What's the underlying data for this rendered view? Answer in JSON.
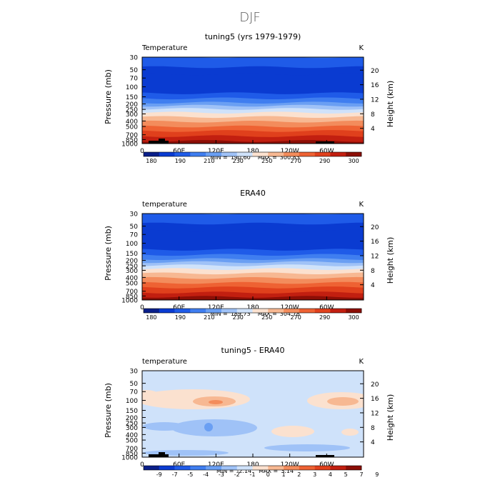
{
  "figure": {
    "title": "DJF"
  },
  "chart_data": [
    {
      "type": "heatmap",
      "title": "tuning5 (yrs 1979-1979)",
      "variable_label": "Temperature",
      "units": "K",
      "ylabel": "Pressure (mb)",
      "ylabel_right": "Height (km)",
      "x_ticks": [
        "0",
        "60E",
        "120E",
        "180",
        "120W",
        "60W"
      ],
      "y_ticks": [
        "30",
        "50",
        "70",
        "100",
        "150",
        "200",
        "250",
        "300",
        "400",
        "500",
        "700",
        "850",
        "1000"
      ],
      "y_ticks_right": [
        "20",
        "16",
        "12",
        "8",
        "4"
      ],
      "ylim": [
        1000,
        30
      ],
      "stats": {
        "min_label": "MIN =",
        "min": "190.60",
        "max_label": "MAX =",
        "max": "300.83"
      },
      "colorbar_labels": [
        "180",
        "190",
        "210",
        "230",
        "250",
        "270",
        "290",
        "300"
      ],
      "colorbar_colors": [
        "#0a1f8a",
        "#0a3bd1",
        "#1f5be8",
        "#3f7ef0",
        "#6a9ff3",
        "#9fc2f7",
        "#cfe2fa",
        "#fbe1cf",
        "#f7b892",
        "#f38c5c",
        "#ee6233",
        "#e0401c",
        "#c21f10",
        "#8c0e06"
      ],
      "profile": [
        {
          "p": 30,
          "c": 3
        },
        {
          "p": 45,
          "c": 2
        },
        {
          "p": 60,
          "c": 1
        },
        {
          "p": 130,
          "c": 1
        },
        {
          "p": 160,
          "c": 2
        },
        {
          "p": 190,
          "c": 3
        },
        {
          "p": 215,
          "c": 4
        },
        {
          "p": 245,
          "c": 5
        },
        {
          "p": 285,
          "c": 6
        },
        {
          "p": 340,
          "c": 7
        },
        {
          "p": 410,
          "c": 8
        },
        {
          "p": 500,
          "c": 9
        },
        {
          "p": 600,
          "c": 10
        },
        {
          "p": 740,
          "c": 11
        },
        {
          "p": 900,
          "c": 12
        },
        {
          "p": 1000,
          "c": 13
        }
      ]
    },
    {
      "type": "heatmap",
      "title": "ERA40",
      "variable_label": "temperature",
      "units": "K",
      "ylabel": "Pressure (mb)",
      "ylabel_right": "Height (km)",
      "x_ticks": [
        "0",
        "60E",
        "120E",
        "180",
        "120W",
        "60W"
      ],
      "y_ticks": [
        "30",
        "50",
        "70",
        "100",
        "150",
        "200",
        "250",
        "300",
        "400",
        "500",
        "700",
        "850",
        "1000"
      ],
      "y_ticks_right": [
        "20",
        "16",
        "12",
        "8",
        "4"
      ],
      "ylim": [
        1000,
        30
      ],
      "stats": {
        "min_label": "MIN =",
        "min": "189.73",
        "max_label": "MAX =",
        "max": "304.78"
      },
      "colorbar_labels": [
        "180",
        "190",
        "210",
        "230",
        "250",
        "270",
        "290",
        "300"
      ],
      "colorbar_colors": [
        "#0a1f8a",
        "#0a3bd1",
        "#1f5be8",
        "#3f7ef0",
        "#6a9ff3",
        "#9fc2f7",
        "#cfe2fa",
        "#fbe1cf",
        "#f7b892",
        "#f38c5c",
        "#ee6233",
        "#e0401c",
        "#c21f10",
        "#8c0e06"
      ],
      "profile": [
        {
          "p": 30,
          "c": 3
        },
        {
          "p": 45,
          "c": 2
        },
        {
          "p": 60,
          "c": 1
        },
        {
          "p": 130,
          "c": 1
        },
        {
          "p": 160,
          "c": 2
        },
        {
          "p": 190,
          "c": 3
        },
        {
          "p": 215,
          "c": 4
        },
        {
          "p": 245,
          "c": 5
        },
        {
          "p": 285,
          "c": 6
        },
        {
          "p": 340,
          "c": 7
        },
        {
          "p": 410,
          "c": 8
        },
        {
          "p": 500,
          "c": 9
        },
        {
          "p": 600,
          "c": 10
        },
        {
          "p": 740,
          "c": 11
        },
        {
          "p": 880,
          "c": 12
        },
        {
          "p": 1000,
          "c": 13
        }
      ]
    },
    {
      "type": "heatmap",
      "title": "tuning5 - ERA40",
      "variable_label": "temperature",
      "units": "K",
      "ylabel": "Pressure (mb)",
      "ylabel_right": "Height (km)",
      "x_ticks": [
        "0",
        "60E",
        "120E",
        "180",
        "120W",
        "60W"
      ],
      "y_ticks": [
        "30",
        "50",
        "70",
        "100",
        "150",
        "200",
        "250",
        "300",
        "400",
        "500",
        "700",
        "850",
        "1000"
      ],
      "y_ticks_right": [
        "20",
        "16",
        "12",
        "8",
        "4"
      ],
      "ylim": [
        1000,
        30
      ],
      "stats": {
        "min_label": "MIN =",
        "min": "-2.14",
        "max_label": "MAX =",
        "max": "3.14"
      },
      "colorbar_labels": [
        "-9",
        "-7",
        "-5",
        "-4",
        "-3",
        "-2",
        "-1",
        "0",
        "1",
        "2",
        "3",
        "4",
        "5",
        "7",
        "9"
      ],
      "colorbar_colors": [
        "#0a1f8a",
        "#0a3bd1",
        "#1f5be8",
        "#3f7ef0",
        "#6a9ff3",
        "#9fc2f7",
        "#cfe2fa",
        "#fbe1cf",
        "#f7b892",
        "#f38c5c",
        "#ee6233",
        "#e0401c",
        "#c21f10",
        "#8c0e06"
      ],
      "profile": [
        {
          "p": 30,
          "c": 6
        },
        {
          "p": 1000,
          "c": 6
        }
      ]
    }
  ]
}
